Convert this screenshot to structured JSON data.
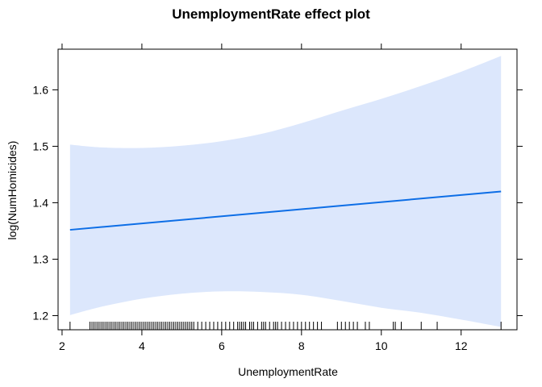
{
  "chart_data": {
    "type": "line",
    "title": "UnemploymentRate effect plot",
    "xlabel": "UnemploymentRate",
    "ylabel": "log(NumHomicides)",
    "xlim": [
      1.9,
      13.4
    ],
    "ylim": [
      1.175,
      1.672
    ],
    "x_ticks": [
      2,
      4,
      6,
      8,
      10,
      12
    ],
    "y_ticks": [
      1.2,
      1.3,
      1.4,
      1.5,
      1.6
    ],
    "grid": false,
    "series": [
      {
        "values": [
          {
            "x": 2.2,
            "y": 1.352
          },
          {
            "x": 13.0,
            "y": 1.42
          }
        ]
      }
    ],
    "confidence_band": {
      "upper": [
        {
          "x": 2.2,
          "y": 1.503
        },
        {
          "x": 3.0,
          "y": 1.498
        },
        {
          "x": 4.0,
          "y": 1.497
        },
        {
          "x": 5.0,
          "y": 1.501
        },
        {
          "x": 6.0,
          "y": 1.509
        },
        {
          "x": 7.0,
          "y": 1.522
        },
        {
          "x": 8.0,
          "y": 1.541
        },
        {
          "x": 9.0,
          "y": 1.563
        },
        {
          "x": 10.0,
          "y": 1.584
        },
        {
          "x": 11.0,
          "y": 1.607
        },
        {
          "x": 12.0,
          "y": 1.632
        },
        {
          "x": 13.0,
          "y": 1.66
        }
      ],
      "lower": [
        {
          "x": 2.2,
          "y": 1.201
        },
        {
          "x": 3.0,
          "y": 1.216
        },
        {
          "x": 4.0,
          "y": 1.23
        },
        {
          "x": 5.0,
          "y": 1.239
        },
        {
          "x": 6.0,
          "y": 1.243
        },
        {
          "x": 7.0,
          "y": 1.242
        },
        {
          "x": 8.0,
          "y": 1.237
        },
        {
          "x": 9.0,
          "y": 1.226
        },
        {
          "x": 10.0,
          "y": 1.214
        },
        {
          "x": 11.0,
          "y": 1.205
        },
        {
          "x": 12.0,
          "y": 1.193
        },
        {
          "x": 13.0,
          "y": 1.18
        }
      ]
    },
    "rug": [
      2.2,
      2.7,
      2.75,
      2.8,
      2.85,
      2.9,
      2.95,
      3.0,
      3.05,
      3.1,
      3.15,
      3.2,
      3.25,
      3.3,
      3.35,
      3.4,
      3.45,
      3.5,
      3.55,
      3.6,
      3.65,
      3.7,
      3.75,
      3.8,
      3.85,
      3.9,
      3.95,
      4.0,
      4.05,
      4.1,
      4.15,
      4.2,
      4.25,
      4.3,
      4.35,
      4.4,
      4.45,
      4.5,
      4.55,
      4.6,
      4.65,
      4.7,
      4.75,
      4.8,
      4.85,
      4.9,
      4.95,
      5.0,
      5.05,
      5.1,
      5.15,
      5.2,
      5.25,
      5.3,
      5.4,
      5.5,
      5.6,
      5.7,
      5.8,
      5.9,
      6.0,
      6.1,
      6.2,
      6.3,
      6.4,
      6.45,
      6.5,
      6.55,
      6.6,
      6.7,
      6.75,
      6.8,
      6.9,
      7.0,
      7.05,
      7.1,
      7.2,
      7.3,
      7.35,
      7.4,
      7.5,
      7.6,
      7.7,
      7.8,
      7.9,
      8.0,
      8.1,
      8.2,
      8.3,
      8.4,
      8.5,
      8.9,
      9.0,
      9.1,
      9.2,
      9.3,
      9.4,
      9.6,
      9.7,
      10.3,
      10.35,
      10.5,
      11.0,
      11.4,
      13.0
    ]
  }
}
